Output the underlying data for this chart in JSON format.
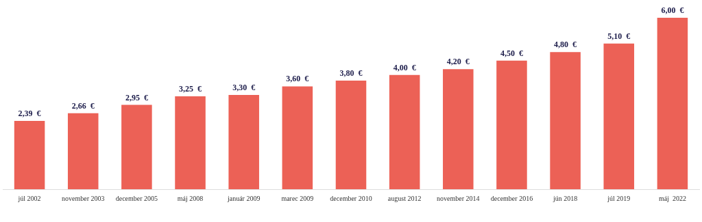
{
  "chart_data": {
    "type": "bar",
    "categories": [
      "júl 2002",
      "november 2003",
      "december 2005",
      "máj 2008",
      "január 2009",
      "marec 2009",
      "december 2010",
      "august 2012",
      "november 2014",
      "december 2016",
      "jún 2018",
      "júl 2019",
      "máj  2022"
    ],
    "values": [
      2.39,
      2.66,
      2.95,
      3.25,
      3.3,
      3.6,
      3.8,
      4.0,
      4.2,
      4.5,
      4.8,
      5.1,
      6.0
    ],
    "value_labels": [
      "2,39  €",
      "2,66  €",
      "2,95  €",
      "3,25  €",
      "3,30  €",
      "3,60  €",
      "3,80  €",
      "4,00  €",
      "4,20  €",
      "4,50  €",
      "4,80  €",
      "5,10  €",
      "6,00  €"
    ],
    "color": "#ec6156",
    "grid": false,
    "legend": false
  }
}
